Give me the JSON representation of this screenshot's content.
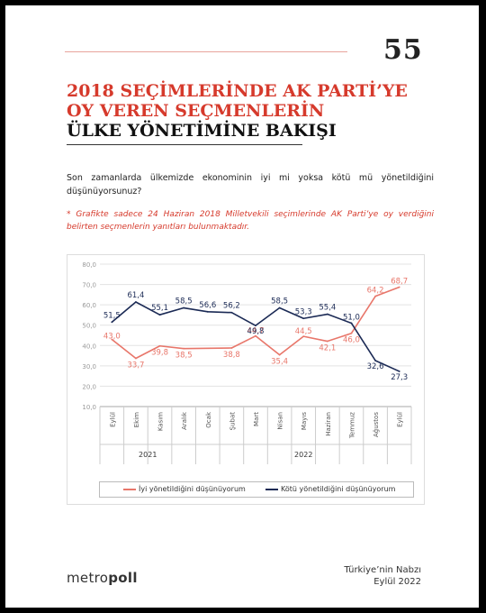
{
  "page_number": "55",
  "title": {
    "line1": "2018 SEÇİMLERİNDE AK PARTİ’YE",
    "line2": "OY VEREN SEÇMENLERİN",
    "line3": "ÜLKE YÖNETİMİNE BAKIŞI"
  },
  "question": "Son zamanlarda ülkemizde ekonominin iyi mi yoksa kötü mü yönetildiğini düşünüyorsunuz?",
  "note": "* Grafikte sadece 24 Haziran 2018 Milletvekili seçimlerinde AK Parti’ye oy verdiğini belirten seçmenlerin yanıtları bulunmaktadır.",
  "footer": {
    "logo_light": "metro",
    "logo_bold": "poll",
    "source_line1": "Türkiye’nin Nabzı",
    "source_line2": "Eylül 2022"
  },
  "colors": {
    "accent_red": "#d63a2c",
    "series_good": "#e8766a",
    "series_bad": "#1b2a55"
  },
  "chart_data": {
    "type": "line",
    "categories": [
      "Eylül",
      "Ekim",
      "Kasım",
      "Aralık",
      "Ocak",
      "Şubat",
      "Mart",
      "Nisan",
      "Mayıs",
      "Haziran",
      "Temmuz",
      "Ağustos",
      "Eylül"
    ],
    "year_groups": [
      {
        "label": "2021",
        "start": 0,
        "end": 3
      },
      {
        "label": "2022",
        "start": 4,
        "end": 12
      }
    ],
    "ylim": [
      10,
      80
    ],
    "yticks": [
      "10,0",
      "20,0",
      "30,0",
      "40,0",
      "50,0",
      "60,0",
      "70,0",
      "80,0"
    ],
    "grid": true,
    "legend_position": "bottom",
    "series": [
      {
        "name": "İyi yönetildiğini düşünüyorum",
        "color": "#e8766a",
        "values": [
          43.0,
          33.7,
          39.8,
          38.5,
          null,
          38.8,
          44.7,
          35.4,
          44.5,
          42.1,
          46.0,
          64.2,
          68.7
        ],
        "labels": [
          "43,0",
          "33,7",
          "39,8",
          "38,5",
          "",
          "38,8",
          "44,7",
          "35,4",
          "44,5",
          "42,1",
          "46,0",
          "64,2",
          "68,7"
        ]
      },
      {
        "name": "Kötü yönetildiğini düşünüyorum",
        "color": "#1b2a55",
        "values": [
          51.5,
          61.4,
          55.1,
          58.5,
          56.6,
          56.2,
          49.8,
          58.5,
          53.3,
          55.4,
          51.0,
          32.6,
          27.3
        ],
        "labels": [
          "51,5",
          "61,4",
          "55,1",
          "58,5",
          "56,6",
          "56,2",
          "49,8",
          "58,5",
          "53,3",
          "55,4",
          "51,0",
          "32,6",
          "27,3"
        ]
      }
    ]
  }
}
